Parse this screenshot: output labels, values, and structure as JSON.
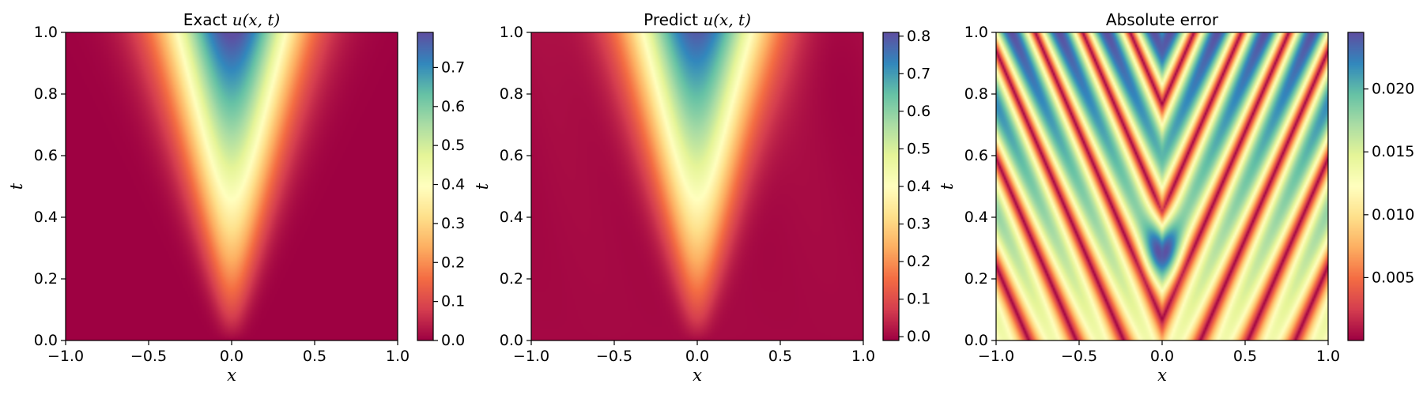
{
  "chart_data": [
    {
      "type": "heatmap",
      "title_text": "Exact ",
      "title_math": "u(x, t)",
      "xlabel": "x",
      "ylabel": "t",
      "xlim": [
        -1.0,
        1.0
      ],
      "ylim": [
        0.0,
        1.0
      ],
      "x_ticks": [
        "−1.0",
        "−0.5",
        "0.0",
        "0.5",
        "1.0"
      ],
      "y_ticks": [
        "0.0",
        "0.2",
        "0.4",
        "0.6",
        "0.8",
        "1.0"
      ],
      "colormap": "Spectral",
      "colorbar_range": [
        0.0,
        0.79
      ],
      "colorbar_ticks": [
        "0.0",
        "0.1",
        "0.2",
        "0.3",
        "0.4",
        "0.5",
        "0.6",
        "0.7"
      ],
      "colorbar_tick_values": [
        0.0,
        0.1,
        0.2,
        0.3,
        0.4,
        0.5,
        0.6,
        0.7
      ],
      "field": "exact"
    },
    {
      "type": "heatmap",
      "title_text": "Predict ",
      "title_math": "u(x, t)",
      "xlabel": "x",
      "ylabel": "t",
      "xlim": [
        -1.0,
        1.0
      ],
      "ylim": [
        0.0,
        1.0
      ],
      "x_ticks": [
        "−1.0",
        "−0.5",
        "0.0",
        "0.5",
        "1.0"
      ],
      "y_ticks": [
        "0.0",
        "0.2",
        "0.4",
        "0.6",
        "0.8",
        "1.0"
      ],
      "colormap": "Spectral",
      "colorbar_range": [
        -0.01,
        0.81
      ],
      "colorbar_ticks": [
        "0.0",
        "0.1",
        "0.2",
        "0.3",
        "0.4",
        "0.5",
        "0.6",
        "0.7",
        "0.8"
      ],
      "colorbar_tick_values": [
        0.0,
        0.1,
        0.2,
        0.3,
        0.4,
        0.5,
        0.6,
        0.7,
        0.8
      ],
      "field": "predict"
    },
    {
      "type": "heatmap",
      "title_text": "Absolute error",
      "title_math": "",
      "xlabel": "x",
      "ylabel": "t",
      "xlim": [
        -1.0,
        1.0
      ],
      "ylim": [
        0.0,
        1.0
      ],
      "x_ticks": [
        "−1.0",
        "−0.5",
        "0.0",
        "0.5",
        "1.0"
      ],
      "y_ticks": [
        "0.0",
        "0.2",
        "0.4",
        "0.6",
        "0.8",
        "1.0"
      ],
      "colormap": "Spectral",
      "colorbar_range": [
        0.0,
        0.0245
      ],
      "colorbar_ticks": [
        "0.005",
        "0.010",
        "0.015",
        "0.020"
      ],
      "colorbar_tick_values": [
        0.005,
        0.01,
        0.015,
        0.02
      ],
      "field": "error"
    }
  ],
  "colormap_stops": [
    "#9e0142",
    "#d53e4f",
    "#f46d43",
    "#fdae61",
    "#fee08b",
    "#ffffbf",
    "#e6f598",
    "#abdda4",
    "#66c2a5",
    "#3288bd",
    "#5e4fa2"
  ]
}
